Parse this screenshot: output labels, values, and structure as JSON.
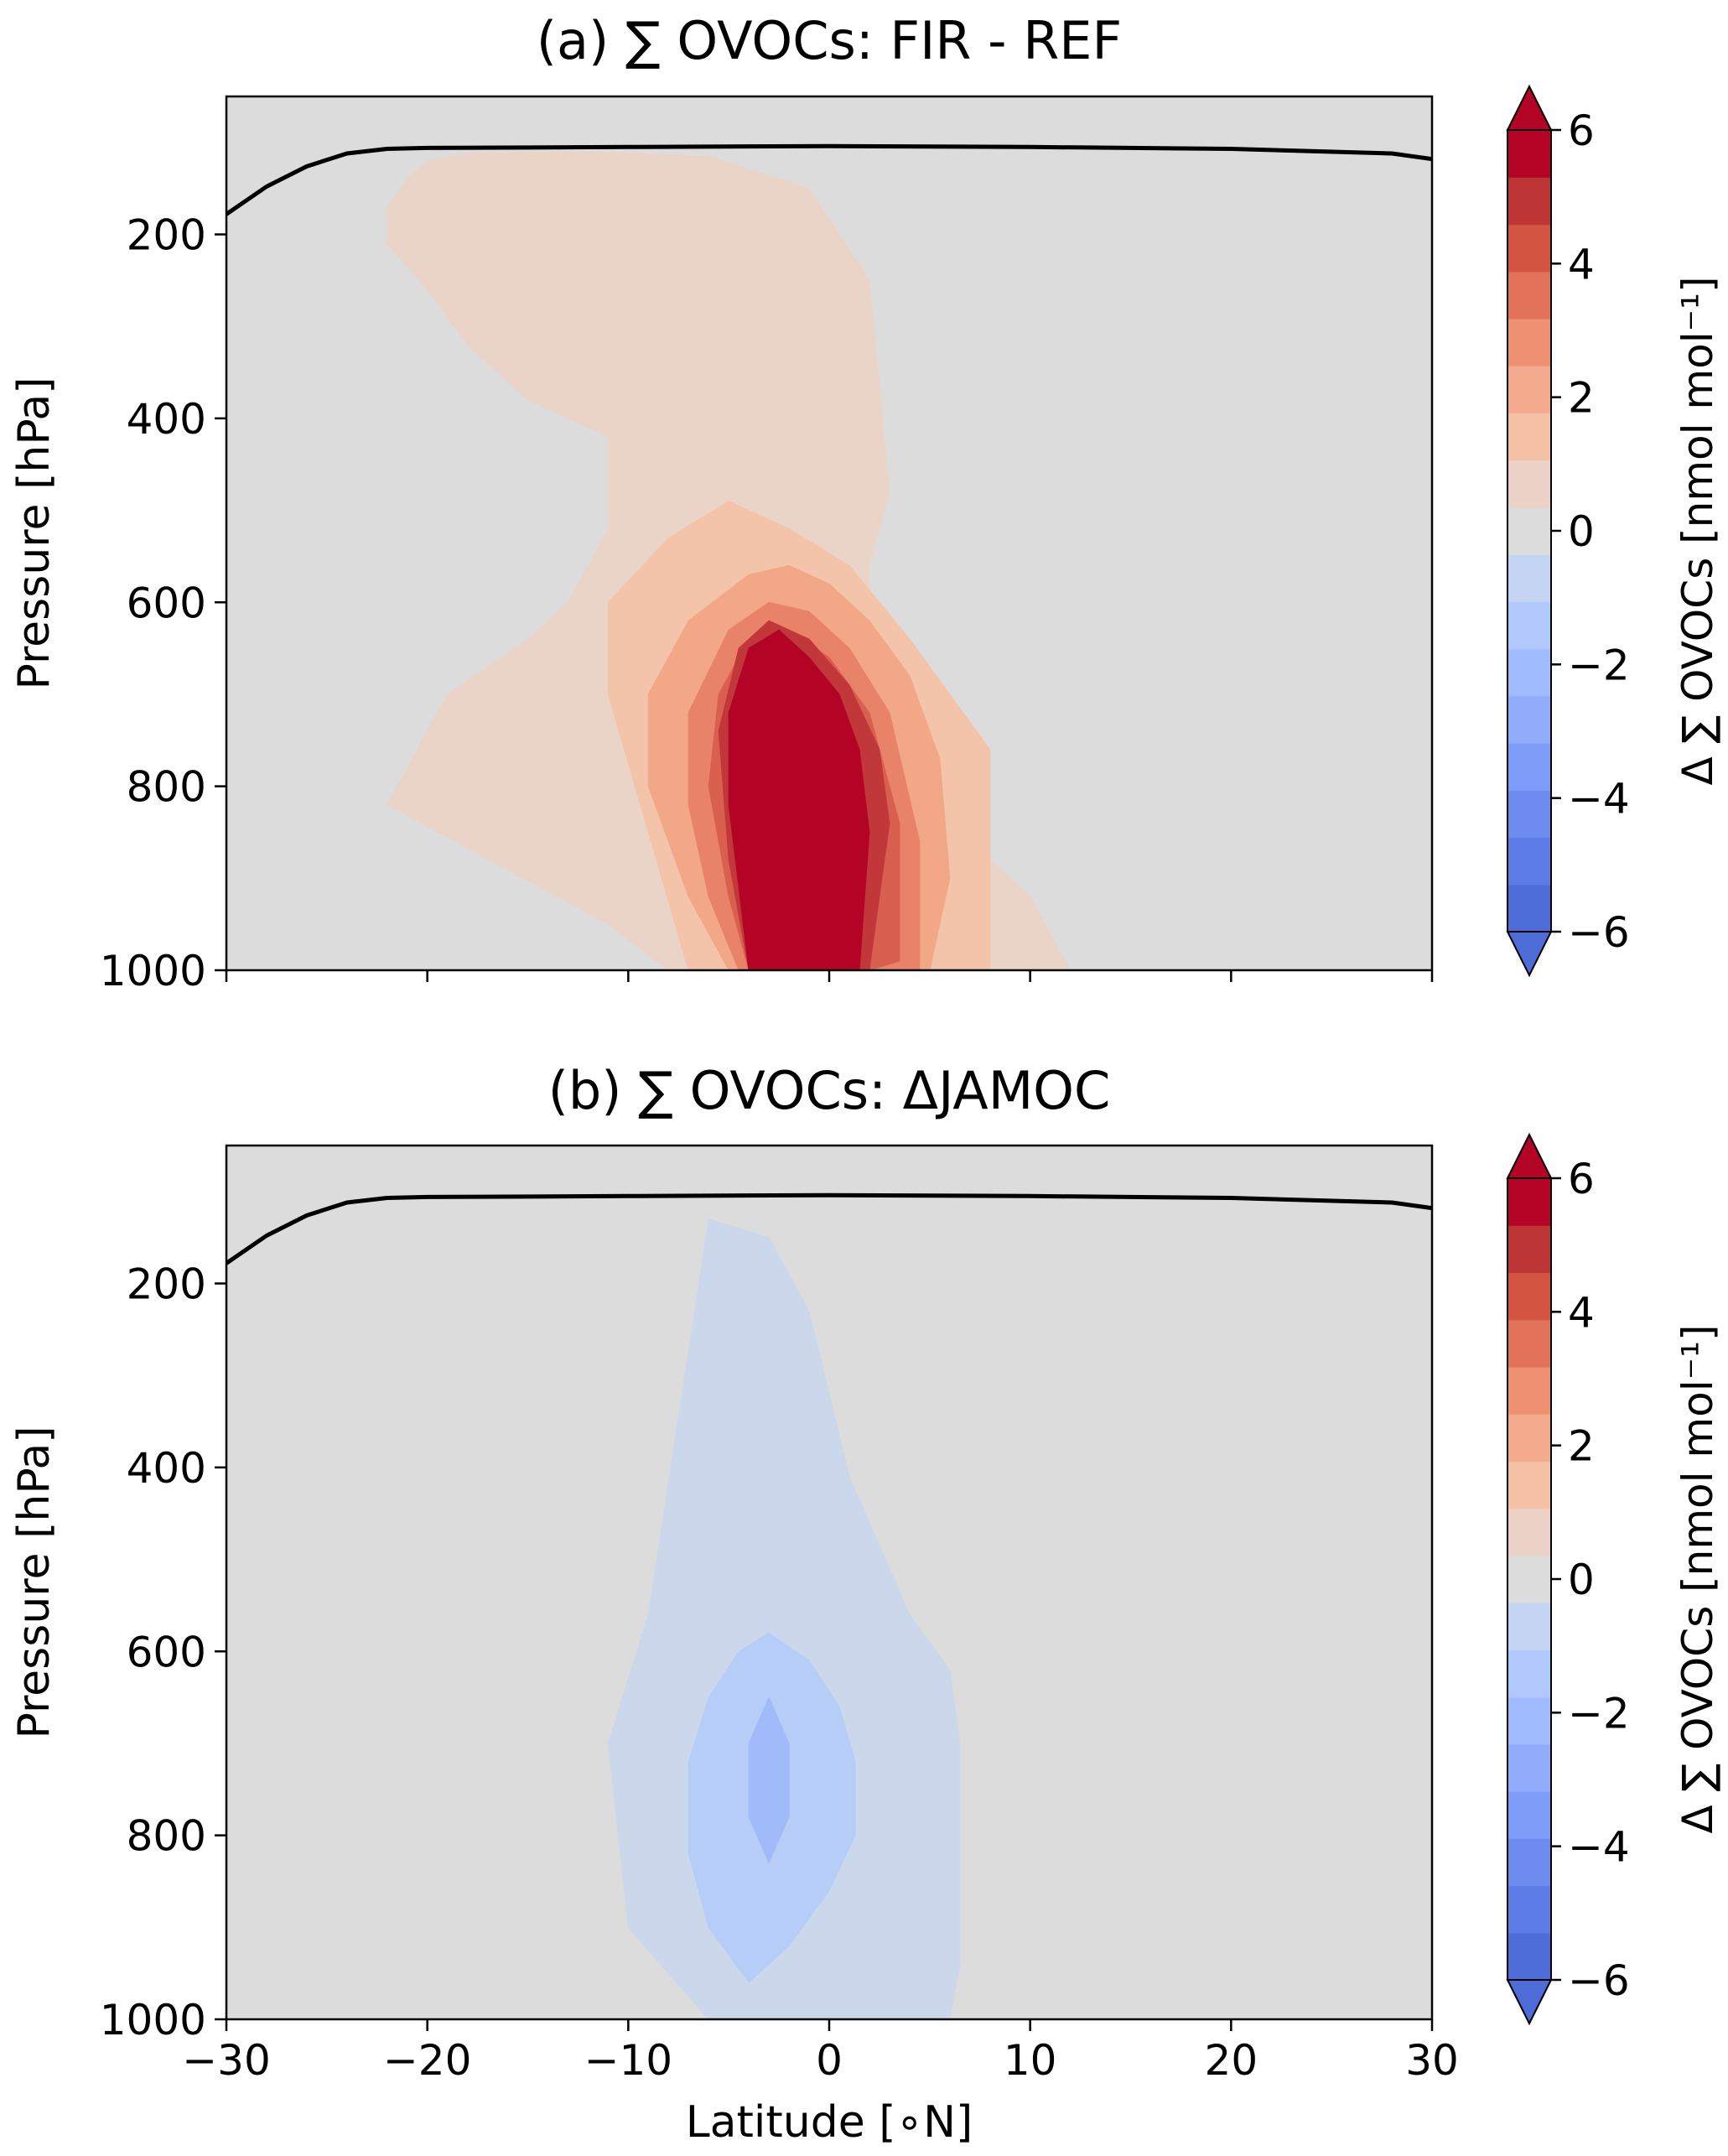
{
  "figure": {
    "shared_xlabel": "Latitude [∘N]"
  },
  "chart_data": [
    {
      "type": "contour",
      "panel": "a",
      "title": "(a) ∑ OVOCs: FIR - REF",
      "xlabel": "",
      "ylabel": "Pressure [hPa]",
      "xlim": [
        -30,
        30
      ],
      "ylim": [
        1000,
        50
      ],
      "yticks": [
        200,
        400,
        600,
        800,
        1000
      ],
      "xticks": [
        -30,
        -20,
        -10,
        0,
        10,
        20,
        30
      ],
      "xtick_labels_visible": false,
      "tropopause_line": {
        "color": "#000000",
        "lat": [
          -30,
          -28,
          -26,
          -24,
          -22,
          -20,
          -10,
          0,
          10,
          20,
          28,
          30
        ],
        "pressure": [
          178,
          148,
          126,
          112,
          107,
          106,
          105,
          104,
          105,
          107,
          112,
          118
        ]
      },
      "filled_contours": [
        {
          "level": "0 to 1",
          "color": "#ead4c8",
          "polygon_lat": [
            -20,
            -21,
            -22,
            -22,
            -20,
            -18,
            -15,
            -11,
            -11,
            -13,
            -15,
            -19,
            -22,
            -11,
            -8,
            -3,
            2,
            8,
            12,
            10,
            6,
            2,
            2,
            3,
            2,
            -1,
            -6,
            -12,
            -18,
            -20
          ],
          "polygon_p": [
            120,
            140,
            170,
            210,
            260,
            320,
            380,
            420,
            520,
            600,
            640,
            700,
            820,
            950,
            1000,
            1000,
            1000,
            1000,
            1000,
            920,
            840,
            780,
            560,
            480,
            250,
            150,
            115,
            110,
            112,
            120
          ]
        },
        {
          "level": "1 to 2",
          "color": "#f4c4aa",
          "polygon_lat": [
            -7,
            -5,
            -3,
            -1,
            1,
            3,
            5,
            8,
            8,
            8,
            6,
            4,
            1,
            -2,
            -5,
            -8,
            -11,
            -11,
            -9,
            -7
          ],
          "polygon_p": [
            1000,
            1000,
            1000,
            1000,
            1000,
            1000,
            1000,
            1000,
            900,
            760,
            700,
            640,
            560,
            520,
            490,
            530,
            600,
            700,
            850,
            1000
          ]
        },
        {
          "level": "2 to 3",
          "color": "#f2a786",
          "polygon_lat": [
            -5,
            -3,
            -1,
            1,
            3,
            5,
            6,
            5.5,
            4,
            2,
            0,
            -2,
            -4,
            -7,
            -9,
            -9,
            -7,
            -5
          ],
          "polygon_p": [
            1000,
            1000,
            1000,
            1000,
            1000,
            1000,
            900,
            770,
            680,
            620,
            580,
            560,
            570,
            620,
            700,
            800,
            920,
            1000
          ]
        },
        {
          "level": "3 to 4",
          "color": "#e8836a",
          "polygon_lat": [
            -4.5,
            -3,
            -1,
            1,
            3,
            4.5,
            4.5,
            3,
            1,
            -1,
            -3,
            -5,
            -7,
            -7,
            -6,
            -4.5
          ],
          "polygon_p": [
            1000,
            1000,
            1000,
            1000,
            1000,
            1000,
            860,
            720,
            650,
            610,
            600,
            630,
            720,
            820,
            920,
            1000
          ]
        },
        {
          "level": "4 to 5",
          "color": "#d9604f",
          "polygon_lat": [
            -4,
            -2,
            0,
            2,
            3.5,
            3.5,
            2,
            0,
            -2,
            -4,
            -5.5,
            -6,
            -5,
            -4
          ],
          "polygon_p": [
            1000,
            1000,
            1000,
            1000,
            990,
            840,
            720,
            660,
            630,
            640,
            700,
            800,
            920,
            1000
          ]
        },
        {
          "level": "5 to 6",
          "color": "#c2383a",
          "polygon_lat": [
            -4,
            -2,
            0,
            2,
            3,
            2.5,
            1,
            -1,
            -3,
            -4.5,
            -5.5,
            -5,
            -4
          ],
          "polygon_p": [
            1000,
            1000,
            1000,
            1000,
            840,
            760,
            690,
            640,
            620,
            650,
            740,
            880,
            1000
          ]
        },
        {
          "level": "> 6",
          "color": "#b40426",
          "polygon_lat": [
            -4,
            -2,
            0,
            1.5,
            2,
            1.5,
            0.5,
            -1,
            -2.5,
            -4,
            -5,
            -5,
            -4
          ],
          "polygon_p": [
            1000,
            1000,
            1000,
            1000,
            850,
            760,
            700,
            660,
            630,
            650,
            720,
            820,
            1000
          ]
        }
      ],
      "colorbar": {
        "label": "Δ ∑ OVOCs [nmol mol⁻¹]",
        "range": [
          -6,
          6
        ],
        "ticks": [
          6,
          4,
          2,
          0,
          -2,
          -4,
          -6
        ],
        "tick_labels": [
          "6",
          "4",
          "2",
          "0",
          "−2",
          "−4",
          "−6"
        ],
        "colors_low_to_high": [
          "#4e6cd8",
          "#5d7ce6",
          "#6e8cf0",
          "#7f9df8",
          "#90acfb",
          "#a0bbfe",
          "#b2c8fd",
          "#c3d5f3",
          "#dcdcdc",
          "#ecd2c6",
          "#f4c0a6",
          "#f4aa8d",
          "#ee9071",
          "#e2735a",
          "#d25441",
          "#bd3534",
          "#b40426"
        ]
      }
    },
    {
      "type": "contour",
      "panel": "b",
      "title": "(b) ∑ OVOCs: ΔJAMOC",
      "xlabel": "Latitude [∘N]",
      "ylabel": "Pressure [hPa]",
      "xlim": [
        -30,
        30
      ],
      "ylim": [
        1000,
        50
      ],
      "yticks": [
        200,
        400,
        600,
        800,
        1000
      ],
      "xticks": [
        -30,
        -20,
        -10,
        0,
        10,
        20,
        30
      ],
      "xtick_labels": [
        "−30",
        "−20",
        "−10",
        "0",
        "10",
        "20",
        "30"
      ],
      "tropopause_line": {
        "color": "#000000",
        "lat": [
          -30,
          -28,
          -26,
          -24,
          -22,
          -20,
          -10,
          0,
          10,
          20,
          28,
          30
        ],
        "pressure": [
          178,
          148,
          126,
          112,
          107,
          106,
          105,
          104,
          105,
          107,
          112,
          118
        ]
      },
      "filled_contours": [
        {
          "level": "-1 to 0",
          "color": "#cbd8ec",
          "polygon_lat": [
            -6,
            -4,
            -4,
            -3,
            -3,
            -1,
            0.5,
            1,
            2,
            4,
            6,
            6.5,
            6.5,
            6,
            6,
            4,
            1,
            -1,
            -3,
            -6,
            -9,
            -11,
            -10,
            -6,
            -5.5,
            -5.5,
            -6
          ],
          "polygon_p": [
            1000,
            1000,
            1000,
            1000,
            1000,
            1000,
            1000,
            1000,
            1000,
            1000,
            1000,
            940,
            700,
            620,
            620,
            560,
            410,
            230,
            150,
            130,
            560,
            700,
            900,
            1000,
            1000,
            1000,
            1000
          ]
        },
        {
          "level": "-2 to -1",
          "color": "#b6cdf8",
          "polygon_lat": [
            -6,
            -4,
            -2,
            0,
            1.3,
            1.3,
            0.5,
            -1,
            -3,
            -4.5,
            -6,
            -7,
            -7,
            -6
          ],
          "polygon_p": [
            900,
            960,
            920,
            860,
            800,
            720,
            660,
            610,
            580,
            600,
            650,
            720,
            820,
            900
          ]
        },
        {
          "level": "-3 to -2",
          "color": "#a1bbfa",
          "polygon_lat": [
            -4,
            -3,
            -2,
            -2,
            -3,
            -4,
            -4,
            -4
          ],
          "polygon_p": [
            780,
            830,
            780,
            700,
            650,
            700,
            720,
            780
          ]
        }
      ],
      "colorbar": {
        "label": "Δ ∑ OVOCs [nmol mol⁻¹]",
        "range": [
          -6,
          6
        ],
        "ticks": [
          6,
          4,
          2,
          0,
          -2,
          -4,
          -6
        ],
        "tick_labels": [
          "6",
          "4",
          "2",
          "0",
          "−2",
          "−4",
          "−6"
        ],
        "colors_low_to_high": [
          "#4e6cd8",
          "#5d7ce6",
          "#6e8cf0",
          "#7f9df8",
          "#90acfb",
          "#a0bbfe",
          "#b2c8fd",
          "#c3d5f3",
          "#dcdcdc",
          "#ecd2c6",
          "#f4c0a6",
          "#f4aa8d",
          "#ee9071",
          "#e2735a",
          "#d25441",
          "#bd3534",
          "#b40426"
        ]
      }
    }
  ]
}
